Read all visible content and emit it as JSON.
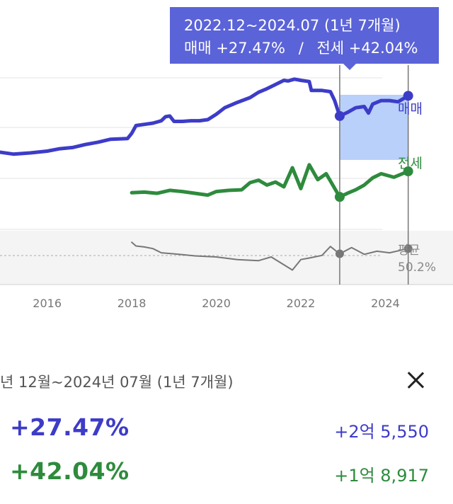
{
  "tooltip": {
    "range": "2022.12~2024.07 (1년 7개월)",
    "sale_label": "매매",
    "sale_change": "+27.47%",
    "separator": "/",
    "rent_label": "전세",
    "rent_change": "+42.04%"
  },
  "chart_data": {
    "type": "line",
    "x_ticks": [
      "2016",
      "2018",
      "2020",
      "2022",
      "2024"
    ],
    "x_range": [
      2014.8,
      2025.6
    ],
    "selection": {
      "start": 2022.92,
      "end": 2024.54
    },
    "series": [
      {
        "name": "매매",
        "color": "#3d3cc8",
        "values": [
          [
            2014.8,
            25.2
          ],
          [
            2015.2,
            24.8
          ],
          [
            2015.6,
            25.0
          ],
          [
            2016.0,
            25.3
          ],
          [
            2016.3,
            25.7
          ],
          [
            2016.6,
            25.9
          ],
          [
            2016.9,
            26.4
          ],
          [
            2017.2,
            26.8
          ],
          [
            2017.5,
            27.3
          ],
          [
            2017.9,
            27.4
          ],
          [
            2018.0,
            28.3
          ],
          [
            2018.1,
            29.6
          ],
          [
            2018.3,
            29.8
          ],
          [
            2018.5,
            30.0
          ],
          [
            2018.7,
            30.4
          ],
          [
            2018.8,
            31.1
          ],
          [
            2018.9,
            31.2
          ],
          [
            2019.0,
            30.3
          ],
          [
            2019.2,
            30.3
          ],
          [
            2019.4,
            30.4
          ],
          [
            2019.6,
            30.4
          ],
          [
            2019.8,
            30.6
          ],
          [
            2020.0,
            31.5
          ],
          [
            2020.2,
            32.6
          ],
          [
            2020.5,
            33.5
          ],
          [
            2020.8,
            34.3
          ],
          [
            2021.0,
            35.2
          ],
          [
            2021.2,
            35.8
          ],
          [
            2021.4,
            36.5
          ],
          [
            2021.6,
            37.2
          ],
          [
            2021.7,
            37.1
          ],
          [
            2021.85,
            37.4
          ],
          [
            2022.0,
            37.2
          ],
          [
            2022.2,
            37.0
          ],
          [
            2022.25,
            35.5
          ],
          [
            2022.5,
            35.5
          ],
          [
            2022.7,
            35.3
          ],
          [
            2022.8,
            33.8
          ],
          [
            2022.92,
            31.2
          ],
          [
            2023.1,
            31.8
          ],
          [
            2023.3,
            32.6
          ],
          [
            2023.5,
            32.8
          ],
          [
            2023.6,
            31.7
          ],
          [
            2023.7,
            33.2
          ],
          [
            2023.9,
            33.8
          ],
          [
            2024.1,
            33.8
          ],
          [
            2024.3,
            33.6
          ],
          [
            2024.54,
            34.6
          ]
        ]
      },
      {
        "name": "전세",
        "color": "#2e8b3d",
        "values": [
          [
            2018.0,
            18.3
          ],
          [
            2018.3,
            18.4
          ],
          [
            2018.6,
            18.2
          ],
          [
            2018.9,
            18.7
          ],
          [
            2019.2,
            18.5
          ],
          [
            2019.5,
            18.2
          ],
          [
            2019.8,
            17.9
          ],
          [
            2020.0,
            18.5
          ],
          [
            2020.3,
            18.7
          ],
          [
            2020.6,
            18.8
          ],
          [
            2020.8,
            20.0
          ],
          [
            2021.0,
            20.4
          ],
          [
            2021.2,
            19.6
          ],
          [
            2021.4,
            20.1
          ],
          [
            2021.6,
            19.3
          ],
          [
            2021.8,
            22.5
          ],
          [
            2022.0,
            19.0
          ],
          [
            2022.2,
            23.0
          ],
          [
            2022.4,
            20.5
          ],
          [
            2022.6,
            21.5
          ],
          [
            2022.92,
            17.6
          ],
          [
            2023.1,
            18.2
          ],
          [
            2023.3,
            18.8
          ],
          [
            2023.5,
            19.6
          ],
          [
            2023.7,
            20.8
          ],
          [
            2023.9,
            21.5
          ],
          [
            2024.2,
            20.9
          ],
          [
            2024.54,
            21.9
          ]
        ]
      },
      {
        "name": "평균",
        "color": "#777777",
        "values": [
          [
            2018.0,
            47.8
          ],
          [
            2018.1,
            47.1
          ],
          [
            2018.3,
            46.9
          ],
          [
            2018.5,
            46.6
          ],
          [
            2018.7,
            45.8
          ],
          [
            2019.0,
            45.6
          ],
          [
            2019.5,
            45.2
          ],
          [
            2020.0,
            45.0
          ],
          [
            2020.5,
            44.5
          ],
          [
            2021.0,
            44.3
          ],
          [
            2021.3,
            45.0
          ],
          [
            2021.5,
            44.0
          ],
          [
            2021.8,
            42.5
          ],
          [
            2022.0,
            44.5
          ],
          [
            2022.2,
            44.8
          ],
          [
            2022.5,
            45.3
          ],
          [
            2022.7,
            47.0
          ],
          [
            2022.92,
            45.6
          ],
          [
            2023.2,
            46.8
          ],
          [
            2023.5,
            45.5
          ],
          [
            2023.8,
            46.1
          ],
          [
            2024.1,
            45.8
          ],
          [
            2024.54,
            46.6
          ]
        ]
      }
    ],
    "end_labels": {
      "sale": "매매",
      "rent": "전세",
      "avg": "평균",
      "avg_value": "50.2%"
    }
  },
  "panel": {
    "range": "년 12월~2024년 07월 (1년 7개월)",
    "sale_pct": "+27.47%",
    "sale_amount": "+2억 5,550",
    "rent_pct": "+42.04%",
    "rent_amount": "+1억 8,917",
    "close_icon": "close-icon"
  }
}
